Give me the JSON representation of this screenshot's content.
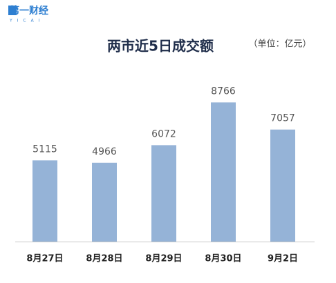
{
  "logo": {
    "text": "第一财经",
    "sub": "YICAI"
  },
  "chart_data": {
    "type": "bar",
    "title": "两市近5日成交额",
    "subtitle": "（单位：亿元）",
    "categories": [
      "8月27日",
      "8月28日",
      "8月29日",
      "8月30日",
      "9月2日"
    ],
    "values": [
      5115,
      4966,
      6072,
      8766,
      7057
    ],
    "color": "#95b3d7"
  }
}
